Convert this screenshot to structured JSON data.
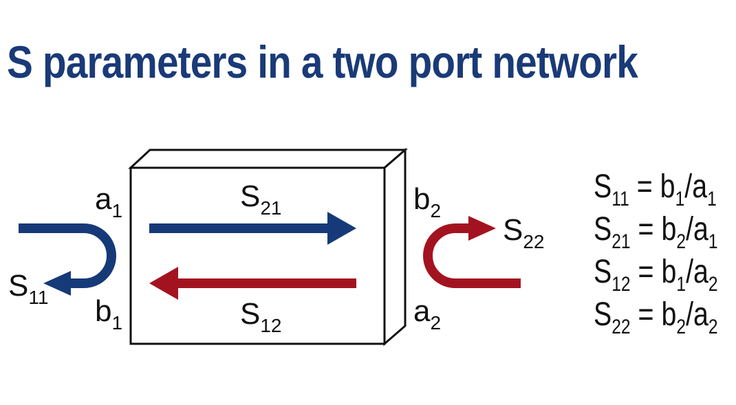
{
  "title": "S parameters in a two port network",
  "colors": {
    "title": "#1a3a78",
    "forward_arrow": "#163a78",
    "reverse_arrow": "#a3131f",
    "box_stroke": "#111111"
  },
  "port1": {
    "incident": {
      "base": "a",
      "sub": "1"
    },
    "reflected": {
      "base": "b",
      "sub": "1"
    },
    "reflection_param": {
      "base": "S",
      "sub": "11"
    }
  },
  "port2": {
    "reflected": {
      "base": "b",
      "sub": "2"
    },
    "incident": {
      "base": "a",
      "sub": "2"
    },
    "reflection_param": {
      "base": "S",
      "sub": "22"
    }
  },
  "transmission": {
    "forward": {
      "base": "S",
      "sub": "21"
    },
    "reverse": {
      "base": "S",
      "sub": "12"
    }
  },
  "equations": [
    {
      "lhs": "S",
      "lhs_sub": "11",
      "eq": "=",
      "num": "b",
      "num_sub": "1",
      "slash": "/",
      "den": "a",
      "den_sub": "1"
    },
    {
      "lhs": "S",
      "lhs_sub": "21",
      "eq": "=",
      "num": "b",
      "num_sub": "2",
      "slash": "/",
      "den": "a",
      "den_sub": "1"
    },
    {
      "lhs": "S",
      "lhs_sub": "12",
      "eq": "=",
      "num": "b",
      "num_sub": "1",
      "slash": "/",
      "den": "a",
      "den_sub": "2"
    },
    {
      "lhs": "S",
      "lhs_sub": "22",
      "eq": "=",
      "num": "b",
      "num_sub": "2",
      "slash": "/",
      "den": "a",
      "den_sub": "2"
    }
  ]
}
